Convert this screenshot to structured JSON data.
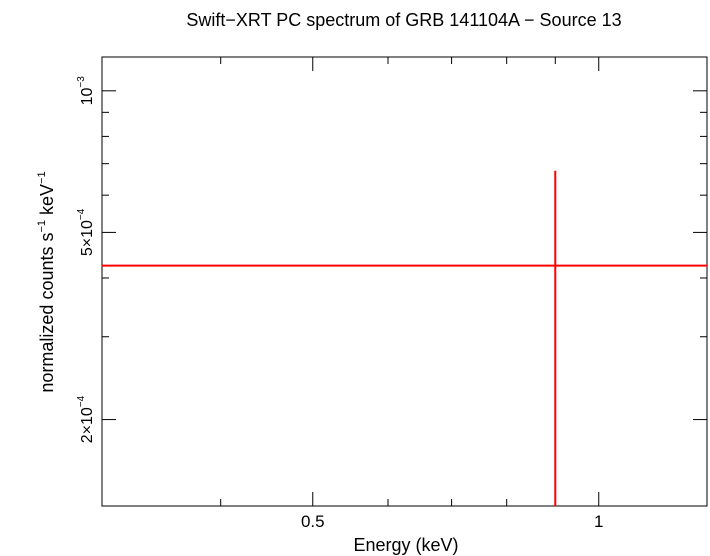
{
  "chart_data": {
    "type": "scatter",
    "title": "Swift−XRT PC spectrum of GRB 141104A − Source 13",
    "xlabel": "Energy (keV)",
    "ylabel": {
      "prefix": "normalized counts s",
      "exp1": "−1",
      "middle": " keV",
      "exp2": "−1"
    },
    "x_scale": "log",
    "y_scale": "log",
    "xlim": [
      0.3,
      1.3
    ],
    "ylim": [
      0.000131,
      0.00118
    ],
    "x_tick_labels": [
      {
        "value": 0.5,
        "label": "0.5"
      },
      {
        "value": 1,
        "label": "1"
      }
    ],
    "y_tick_labels": [
      {
        "value": 0.0002,
        "mantissa": "2×10",
        "exponent": "−4"
      },
      {
        "value": 0.0005,
        "mantissa": "5×10",
        "exponent": "−4"
      },
      {
        "value": 0.001,
        "mantissa": "10",
        "exponent": "−3"
      }
    ],
    "points": [
      {
        "x": 0.9,
        "y": 0.000425,
        "xerr": [
          0.3,
          1.3
        ],
        "yerr": [
          0.000131,
          0.000676
        ]
      }
    ],
    "color": "#ff0000"
  }
}
